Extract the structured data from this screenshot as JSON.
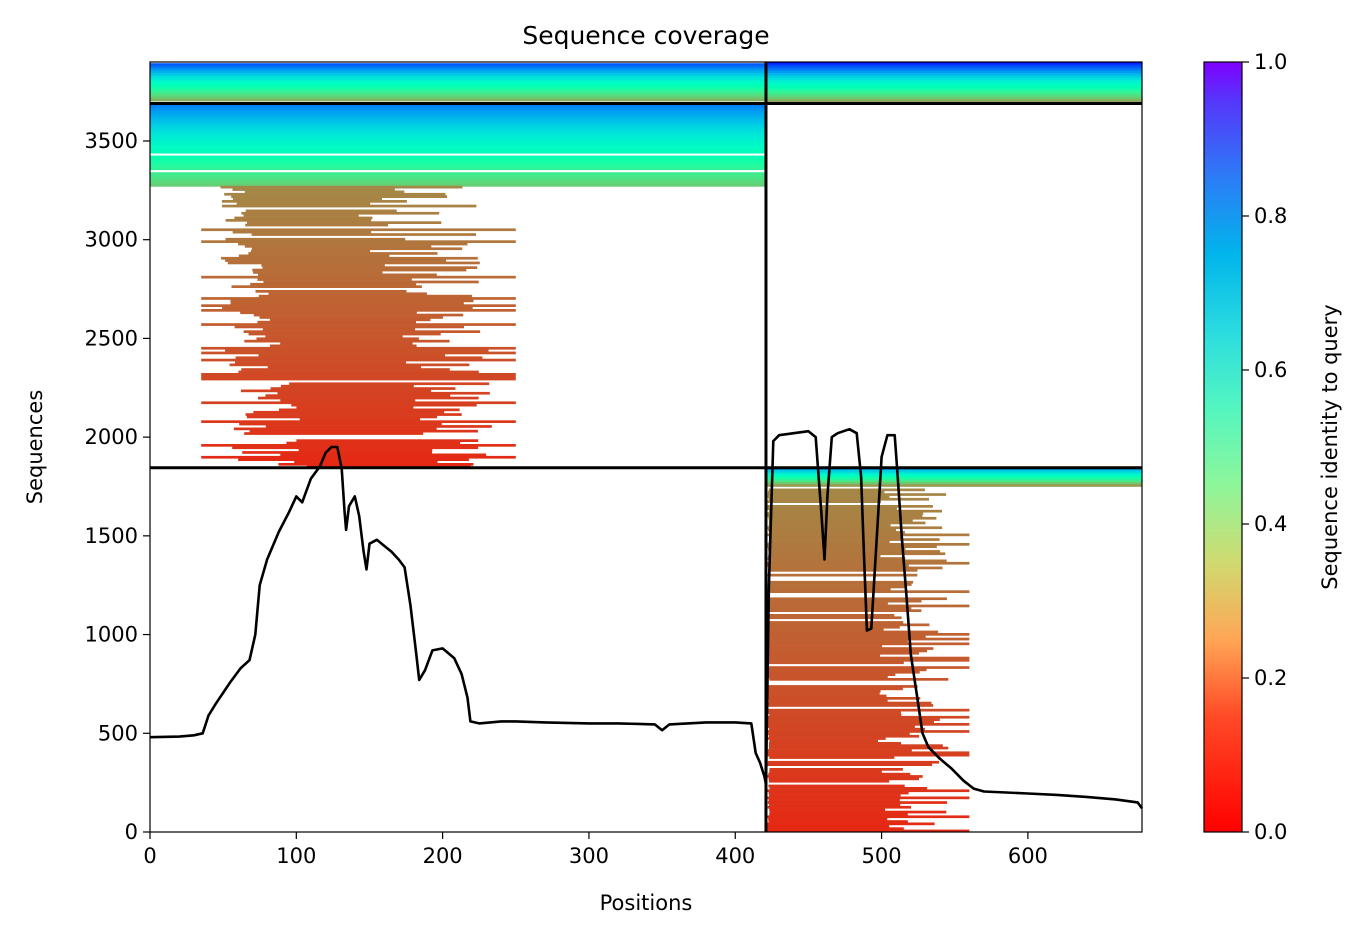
{
  "chart_data": {
    "type": "heatmap",
    "title": "Sequence coverage",
    "xlabel": "Positions",
    "ylabel": "Sequences",
    "xlim": [
      0,
      678
    ],
    "ylim": [
      0,
      3900
    ],
    "x_ticks": [
      0,
      100,
      200,
      300,
      400,
      500,
      600
    ],
    "y_ticks": [
      0,
      500,
      1000,
      1500,
      2000,
      2500,
      3000,
      3500
    ],
    "colorbar": {
      "label": "Sequence identity to query",
      "range": [
        0,
        1
      ],
      "ticks": [
        "0.0",
        "0.2",
        "0.4",
        "0.6",
        "0.8",
        "1.0"
      ],
      "colormap": "rainbow_r"
    },
    "domain_boundaries": {
      "vertical_x": [
        421
      ],
      "horizontal_y": [
        1845,
        3690
      ]
    },
    "coverage_blocks": [
      {
        "x": [
          0,
          421
        ],
        "rows": [
          3690,
          3900
        ],
        "identity": [
          0.2,
          0.95
        ]
      },
      {
        "x": [
          421,
          678
        ],
        "rows": [
          3690,
          3900
        ],
        "identity": [
          0.2,
          1.0
        ]
      },
      {
        "x": [
          0,
          421
        ],
        "rows": [
          3270,
          3690
        ],
        "identity": [
          0.3,
          0.85
        ]
      },
      {
        "x": [
          35,
          250
        ],
        "rows": [
          1845,
          3270
        ],
        "identity": [
          0.05,
          0.18
        ]
      },
      {
        "x": [
          421,
          678
        ],
        "rows": [
          1750,
          1845
        ],
        "identity": [
          0.2,
          0.85
        ]
      },
      {
        "x": [
          421,
          560
        ],
        "rows": [
          0,
          1750
        ],
        "identity": [
          0.05,
          0.18
        ]
      }
    ],
    "series": [
      {
        "color": "#000000",
        "points": [
          [
            0,
            480
          ],
          [
            20,
            483
          ],
          [
            30,
            490
          ],
          [
            36,
            500
          ],
          [
            40,
            590
          ],
          [
            45,
            650
          ],
          [
            55,
            760
          ],
          [
            62,
            830
          ],
          [
            68,
            870
          ],
          [
            72,
            1000
          ],
          [
            75,
            1250
          ],
          [
            80,
            1380
          ],
          [
            88,
            1520
          ],
          [
            95,
            1620
          ],
          [
            100,
            1700
          ],
          [
            104,
            1670
          ],
          [
            110,
            1790
          ],
          [
            116,
            1850
          ],
          [
            120,
            1920
          ],
          [
            124,
            1950
          ],
          [
            128,
            1950
          ],
          [
            131,
            1840
          ],
          [
            133,
            1620
          ],
          [
            134,
            1530
          ],
          [
            136,
            1650
          ],
          [
            140,
            1700
          ],
          [
            143,
            1600
          ],
          [
            146,
            1420
          ],
          [
            148,
            1330
          ],
          [
            150,
            1460
          ],
          [
            155,
            1480
          ],
          [
            160,
            1450
          ],
          [
            165,
            1420
          ],
          [
            170,
            1380
          ],
          [
            174,
            1340
          ],
          [
            178,
            1150
          ],
          [
            182,
            900
          ],
          [
            184,
            770
          ],
          [
            188,
            820
          ],
          [
            193,
            920
          ],
          [
            200,
            930
          ],
          [
            208,
            880
          ],
          [
            213,
            800
          ],
          [
            217,
            680
          ],
          [
            219,
            560
          ],
          [
            225,
            550
          ],
          [
            240,
            560
          ],
          [
            250,
            560
          ],
          [
            270,
            555
          ],
          [
            300,
            550
          ],
          [
            320,
            550
          ],
          [
            345,
            545
          ],
          [
            350,
            515
          ],
          [
            355,
            545
          ],
          [
            380,
            555
          ],
          [
            400,
            555
          ],
          [
            411,
            550
          ],
          [
            414,
            400
          ],
          [
            417,
            350
          ],
          [
            420,
            280
          ],
          [
            421,
            240
          ],
          [
            423,
            1250
          ],
          [
            426,
            1980
          ],
          [
            430,
            2010
          ],
          [
            440,
            2020
          ],
          [
            450,
            2030
          ],
          [
            455,
            2000
          ],
          [
            457,
            1800
          ],
          [
            459,
            1600
          ],
          [
            461,
            1380
          ],
          [
            463,
            1700
          ],
          [
            466,
            2000
          ],
          [
            470,
            2020
          ],
          [
            478,
            2040
          ],
          [
            483,
            2020
          ],
          [
            486,
            1800
          ],
          [
            488,
            1400
          ],
          [
            490,
            1020
          ],
          [
            493,
            1030
          ],
          [
            496,
            1400
          ],
          [
            500,
            1900
          ],
          [
            504,
            2010
          ],
          [
            509,
            2010
          ],
          [
            511,
            1800
          ],
          [
            514,
            1480
          ],
          [
            517,
            1200
          ],
          [
            520,
            900
          ],
          [
            524,
            700
          ],
          [
            528,
            500
          ],
          [
            532,
            430
          ],
          [
            540,
            370
          ],
          [
            548,
            320
          ],
          [
            556,
            260
          ],
          [
            563,
            220
          ],
          [
            570,
            205
          ],
          [
            585,
            200
          ],
          [
            600,
            195
          ],
          [
            620,
            188
          ],
          [
            640,
            178
          ],
          [
            660,
            165
          ],
          [
            675,
            150
          ],
          [
            678,
            120
          ]
        ]
      }
    ]
  }
}
